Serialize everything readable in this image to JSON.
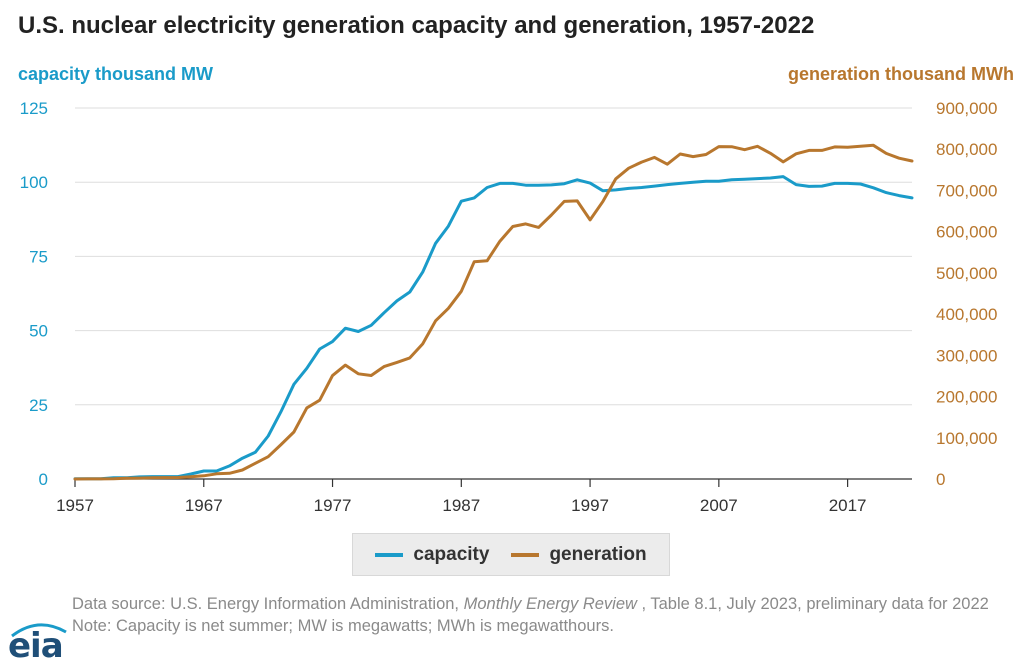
{
  "title": "U.S. nuclear electricity generation capacity and generation, 1957-2022",
  "colors": {
    "capacity": "#1a9bc9",
    "generation": "#b8772e",
    "grid": "#dedede",
    "axis": "#333333"
  },
  "chart_data": {
    "type": "line",
    "title": "U.S. nuclear electricity generation capacity and generation, 1957-2022",
    "xlabel": "",
    "left_axis": {
      "label": "capacity thousand MW",
      "range": [
        0,
        125
      ],
      "ticks": [
        "0",
        "25",
        "50",
        "75",
        "100",
        "125"
      ],
      "tick_values": [
        0,
        25,
        50,
        75,
        100,
        125
      ]
    },
    "right_axis": {
      "label": "generation thousand MWh",
      "range": [
        0,
        900000
      ],
      "ticks": [
        "0",
        "100,000",
        "200,000",
        "300,000",
        "400,000",
        "500,000",
        "600,000",
        "700,000",
        "800,000",
        "900,000"
      ],
      "tick_values": [
        0,
        100000,
        200000,
        300000,
        400000,
        500000,
        600000,
        700000,
        800000,
        900000
      ]
    },
    "x_ticks": [
      "1957",
      "1967",
      "1977",
      "1987",
      "1997",
      "2007",
      "2017"
    ],
    "x_tick_values": [
      1957,
      1967,
      1977,
      1987,
      1997,
      2007,
      2017
    ],
    "x_range": [
      1957,
      2022
    ],
    "grid": true,
    "legend_position": "bottom-center",
    "series": [
      {
        "name": "capacity",
        "axis": "left",
        "x": [
          1957,
          1958,
          1959,
          1960,
          1961,
          1962,
          1963,
          1964,
          1965,
          1966,
          1967,
          1968,
          1969,
          1970,
          1971,
          1972,
          1973,
          1974,
          1975,
          1976,
          1977,
          1978,
          1979,
          1980,
          1981,
          1982,
          1983,
          1984,
          1985,
          1986,
          1987,
          1988,
          1989,
          1990,
          1991,
          1992,
          1993,
          1994,
          1995,
          1996,
          1997,
          1998,
          1999,
          2000,
          2001,
          2002,
          2003,
          2004,
          2005,
          2006,
          2007,
          2008,
          2009,
          2010,
          2011,
          2012,
          2013,
          2014,
          2015,
          2016,
          2017,
          2018,
          2019,
          2020,
          2021,
          2022
        ],
        "values": [
          0.1,
          0.1,
          0.1,
          0.4,
          0.4,
          0.7,
          0.8,
          0.8,
          0.8,
          1.7,
          2.7,
          2.7,
          4.4,
          7.0,
          9.0,
          14.5,
          22.7,
          31.9,
          37.3,
          43.8,
          46.3,
          50.8,
          49.7,
          51.8,
          56.0,
          60.0,
          63.0,
          69.7,
          79.4,
          85.2,
          93.6,
          94.7,
          98.2,
          99.6,
          99.6,
          99.0,
          99.0,
          99.1,
          99.5,
          100.8,
          99.7,
          97.1,
          97.4,
          97.9,
          98.2,
          98.7,
          99.2,
          99.6,
          100.0,
          100.3,
          100.3,
          100.8,
          101.0,
          101.2,
          101.4,
          101.9,
          99.2,
          98.6,
          98.7,
          99.6,
          99.6,
          99.4,
          98.1,
          96.5,
          95.5,
          94.7
        ]
      },
      {
        "name": "generation",
        "axis": "right",
        "x": [
          1957,
          1958,
          1959,
          1960,
          1961,
          1962,
          1963,
          1964,
          1965,
          1966,
          1967,
          1968,
          1969,
          1970,
          1971,
          1972,
          1973,
          1974,
          1975,
          1976,
          1977,
          1978,
          1979,
          1980,
          1981,
          1982,
          1983,
          1984,
          1985,
          1986,
          1987,
          1988,
          1989,
          1990,
          1991,
          1992,
          1993,
          1994,
          1995,
          1996,
          1997,
          1998,
          1999,
          2000,
          2001,
          2002,
          2003,
          2004,
          2005,
          2006,
          2007,
          2008,
          2009,
          2010,
          2011,
          2012,
          2013,
          2014,
          2015,
          2016,
          2017,
          2018,
          2019,
          2020,
          2021,
          2022
        ],
        "values": [
          10,
          165,
          188,
          518,
          1692,
          2270,
          3212,
          3343,
          3657,
          5520,
          7655,
          12528,
          13928,
          21804,
          38105,
          54091,
          83479,
          113976,
          172505,
          191104,
          250883,
          276403,
          255155,
          251116,
          272674,
          282773,
          293677,
          327634,
          383691,
          414038,
          455270,
          526973,
          529355,
          576862,
          612565,
          618776,
          610291,
          640440,
          673402,
          674729,
          628644,
          673702,
          728254,
          753893,
          768826,
          780064,
          763733,
          788528,
          781986,
          787219,
          806425,
          806208,
          798855,
          806968,
          790204,
          769331,
          789016,
          797166,
          797178,
          805694,
          804950,
          807084,
          809409,
          789879,
          778152,
          771537
        ]
      }
    ]
  },
  "legend": {
    "capacity_label": "capacity",
    "generation_label": "generation"
  },
  "footer": {
    "source_prefix": "Data source: U.S. Energy Information Administration, ",
    "source_italic": "Monthly Energy Review",
    "source_suffix": " , Table 8.1, July 2023, preliminary data for 2022",
    "note": "Note: Capacity is net summer; MW is megawatts; MWh is megawatthours."
  },
  "logo": {
    "text": "eia"
  }
}
